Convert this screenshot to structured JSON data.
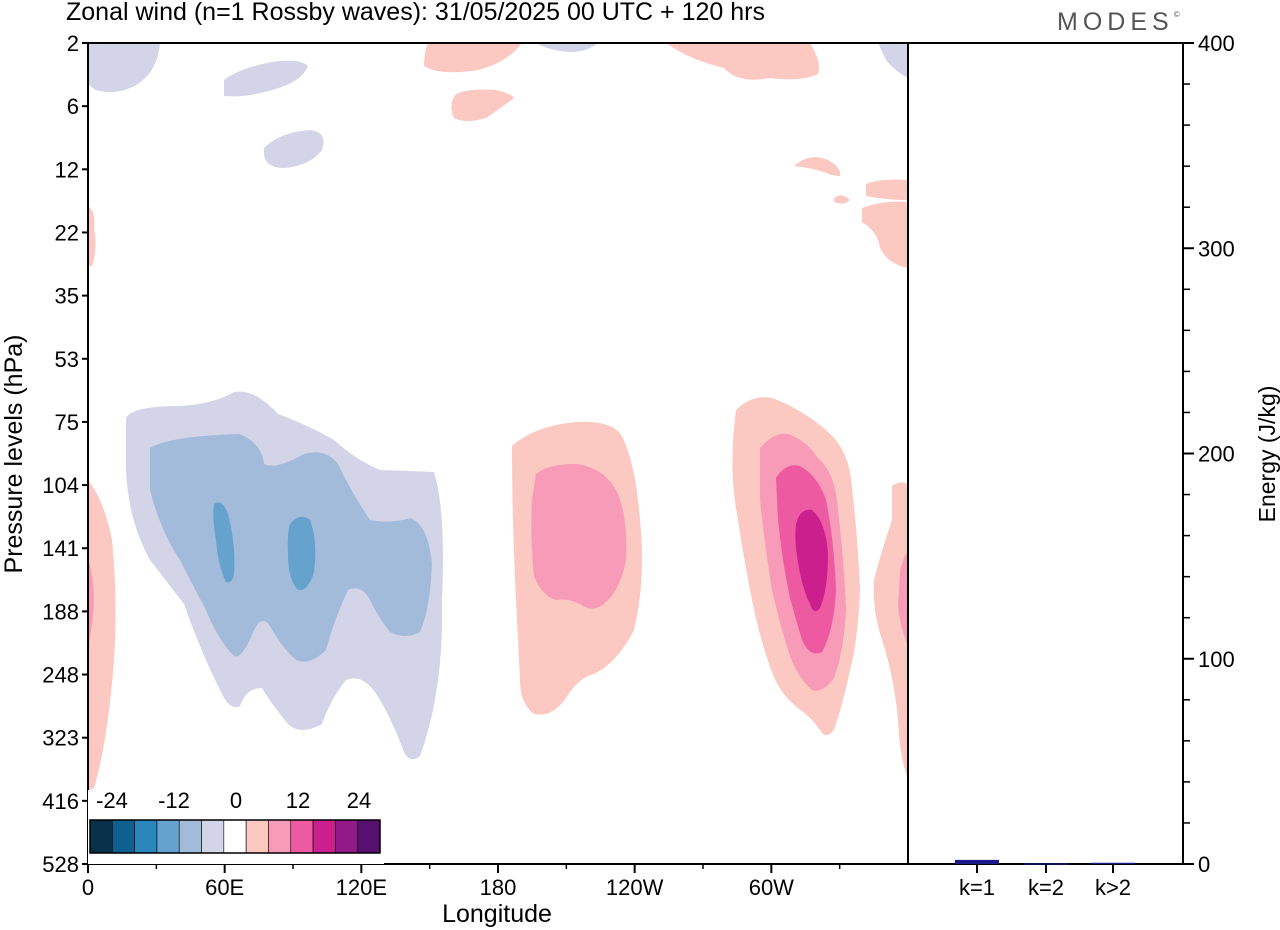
{
  "title": "Zonal wind (n=1 Rossby waves):  31/05/2025  00 UTC  + 120 hrs",
  "brand": "MODES",
  "brand_mark": "©",
  "chart_data": [
    {
      "type": "heatmap",
      "description_of_fields": "filled contours of zonal wind",
      "xlabel": "Longitude",
      "ylabel": "Pressure levels (hPa)",
      "x_ticks": [
        "0",
        "60E",
        "120E",
        "180",
        "120W",
        "60W"
      ],
      "x_tick_values": [
        0,
        60,
        120,
        180,
        240,
        300
      ],
      "xlim": [
        0,
        360
      ],
      "y_ticks": [
        "2",
        "6",
        "12",
        "22",
        "35",
        "53",
        "75",
        "104",
        "141",
        "188",
        "248",
        "323",
        "416",
        "528"
      ],
      "y_order": "top-to-bottom",
      "colorbar": {
        "tick_labels": [
          "-24",
          "-12",
          "0",
          "12",
          "24"
        ],
        "colors": [
          "#08304b",
          "#0f5f8f",
          "#2a86bd",
          "#65a2cd",
          "#a2bbdb",
          "#d3d4e8",
          "#ffffff",
          "#fbc8c2",
          "#f79bb8",
          "#ed5aa2",
          "#cc1f8e",
          "#921a88",
          "#56106f"
        ]
      },
      "features": [
        {
          "sign": "negative",
          "lon_range": [
            10,
            150
          ],
          "level_range": [
            "75",
            "323"
          ],
          "min_level_color": "#65a2cd",
          "centers_lon": [
            62,
            94
          ]
        },
        {
          "sign": "positive",
          "lon_range": [
            190,
            245
          ],
          "level_range": [
            "75",
            "323"
          ],
          "max_level_color": "#f79bb8"
        },
        {
          "sign": "positive",
          "lon_range": [
            280,
            340
          ],
          "level_range": [
            "53",
            "323"
          ],
          "max_level_color": "#cc1f8e",
          "center_lon": 318
        }
      ]
    },
    {
      "type": "bar",
      "ylabel": "Energy (J/kg)",
      "categories": [
        "k=1",
        "k=2",
        "k>2"
      ],
      "values": [
        2,
        0.3,
        0.6
      ],
      "ylim": [
        0,
        400
      ],
      "y_ticks": [
        "0",
        "100",
        "200",
        "300",
        "400"
      ],
      "bar_color": "#1a1a8c"
    }
  ]
}
